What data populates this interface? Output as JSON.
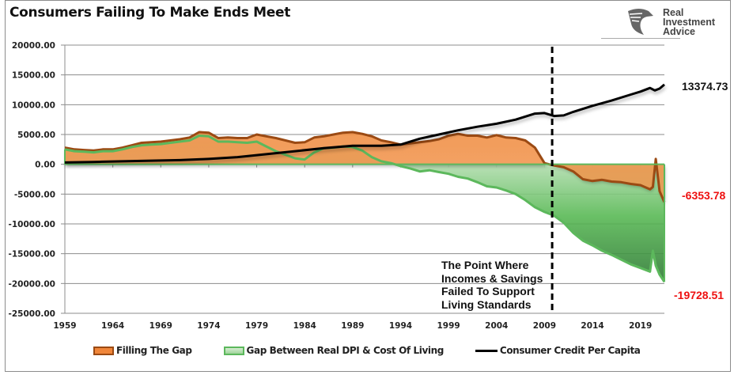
{
  "title": "Consumers Failing To Make Ends Meet",
  "logo": {
    "icon": "eagle-head-icon",
    "lines": [
      "Real",
      "Investment",
      "Advice"
    ]
  },
  "annotation": [
    "The Point Where",
    "Incomes & Savings",
    "Failed To Support",
    "Living Standards"
  ],
  "end_labels": {
    "credit": "13374.73",
    "filling": "-6353.78",
    "gap": "-19728.51"
  },
  "colors": {
    "filling_fill": "#f0863a",
    "filling_line": "#9b4a13",
    "gap_line": "#5cb85c",
    "gap_fill": "#7cc576",
    "credit_line": "#000000",
    "end_label_red": "#ee1111"
  },
  "legend": [
    {
      "name": "Filling The Gap",
      "swatch": "orange-area"
    },
    {
      "name": "Gap Between Real DPI & Cost Of Living",
      "swatch": "green-area"
    },
    {
      "name": "Consumer Credit Per Capita",
      "swatch": "black-line"
    }
  ],
  "chart_data": {
    "type": "area",
    "title": "Consumers Failing To Make Ends Meet",
    "xlabel": "",
    "ylabel": "",
    "xlim": [
      1959,
      2021.5
    ],
    "ylim": [
      -25000,
      20000
    ],
    "y_ticks": [
      "20000.00",
      "15000.00",
      "10000.00",
      "5000.00",
      "0.00",
      "-5000.00",
      "-10000.00",
      "-15000.00",
      "-20000.00",
      "-25000.00"
    ],
    "x_ticks": [
      "1959",
      "1964",
      "1969",
      "1974",
      "1979",
      "1984",
      "1989",
      "1994",
      "1999",
      "2004",
      "2009",
      "2014",
      "2019"
    ],
    "grid": true,
    "legend_position": "bottom",
    "vertical_marker": {
      "x": 2009.8,
      "style": "dashed"
    },
    "series": [
      {
        "name": "Filling The Gap",
        "kind": "area",
        "x": [
          1959,
          1960,
          1961,
          1962,
          1963,
          1964,
          1965,
          1966,
          1967,
          1968,
          1969,
          1970,
          1971,
          1972,
          1973,
          1974,
          1975,
          1976,
          1977,
          1978,
          1979,
          1980,
          1981,
          1982,
          1983,
          1984,
          1985,
          1986,
          1987,
          1988,
          1989,
          1990,
          1991,
          1992,
          1993,
          1994,
          1995,
          1996,
          1997,
          1998,
          1999,
          2000,
          2001,
          2002,
          2003,
          2004,
          2005,
          2006,
          2007,
          2008,
          2009,
          2010,
          2011,
          2012,
          2013,
          2014,
          2015,
          2016,
          2017,
          2018,
          2019,
          2020,
          2020.3,
          2020.6,
          2021,
          2021.5
        ],
        "values": [
          2800,
          2500,
          2400,
          2300,
          2500,
          2500,
          2800,
          3200,
          3600,
          3700,
          3800,
          4000,
          4200,
          4500,
          5400,
          5300,
          4400,
          4500,
          4400,
          4400,
          5000,
          4700,
          4400,
          4000,
          3600,
          3700,
          4500,
          4700,
          5000,
          5300,
          5400,
          5100,
          4700,
          4000,
          3700,
          3300,
          3500,
          3700,
          3900,
          4200,
          4800,
          5100,
          4800,
          4800,
          4500,
          4900,
          4500,
          4400,
          4000,
          2800,
          200,
          -200,
          -500,
          -1200,
          -2500,
          -2800,
          -2600,
          -2900,
          -3000,
          -3300,
          -3500,
          -4200,
          -3800,
          900,
          -4500,
          -6353.78
        ]
      },
      {
        "name": "Gap Between Real DPI & Cost Of Living",
        "kind": "area",
        "x": [
          1959,
          1960,
          1961,
          1962,
          1963,
          1964,
          1965,
          1966,
          1967,
          1968,
          1969,
          1970,
          1971,
          1972,
          1973,
          1974,
          1975,
          1976,
          1977,
          1978,
          1979,
          1980,
          1981,
          1982,
          1983,
          1984,
          1985,
          1986,
          1987,
          1988,
          1989,
          1990,
          1991,
          1992,
          1993,
          1994,
          1995,
          1996,
          1997,
          1998,
          1999,
          2000,
          2001,
          2002,
          2003,
          2004,
          2005,
          2006,
          2007,
          2008,
          2009,
          2010,
          2011,
          2012,
          2013,
          2014,
          2015,
          2016,
          2017,
          2018,
          2019,
          2020,
          2020.3,
          2020.6,
          2021,
          2021.5
        ],
        "values": [
          2500,
          2200,
          2100,
          2000,
          2200,
          2200,
          2500,
          2900,
          3200,
          3300,
          3400,
          3600,
          3800,
          4000,
          4800,
          4700,
          3800,
          3800,
          3700,
          3600,
          3800,
          3000,
          2200,
          1600,
          1000,
          800,
          2000,
          2700,
          2800,
          3000,
          2900,
          2300,
          1200,
          500,
          200,
          -300,
          -700,
          -1200,
          -1000,
          -1300,
          -1600,
          -2100,
          -2400,
          -3000,
          -3700,
          -3900,
          -4400,
          -5000,
          -6000,
          -7200,
          -8000,
          -8600,
          -9800,
          -11500,
          -12800,
          -13600,
          -14500,
          -15200,
          -16000,
          -16800,
          -17400,
          -18000,
          -14500,
          -17000,
          -18500,
          -19728.51
        ]
      },
      {
        "name": "Consumer Credit Per Capita",
        "kind": "line",
        "x": [
          1959,
          1962,
          1965,
          1968,
          1971,
          1974,
          1977,
          1980,
          1983,
          1986,
          1989,
          1992,
          1994,
          1996,
          1998,
          2000,
          2002,
          2004,
          2006,
          2008,
          2009,
          2010,
          2011,
          2012,
          2014,
          2016,
          2018,
          2019,
          2020,
          2020.5,
          2021,
          2021.5
        ],
        "values": [
          300,
          400,
          500,
          600,
          700,
          900,
          1200,
          1700,
          2200,
          2700,
          3100,
          3100,
          3300,
          4300,
          5000,
          5700,
          6300,
          6800,
          7500,
          8500,
          8600,
          8100,
          8200,
          8800,
          9800,
          10700,
          11700,
          12200,
          12800,
          12400,
          12700,
          13374.73
        ]
      }
    ]
  }
}
